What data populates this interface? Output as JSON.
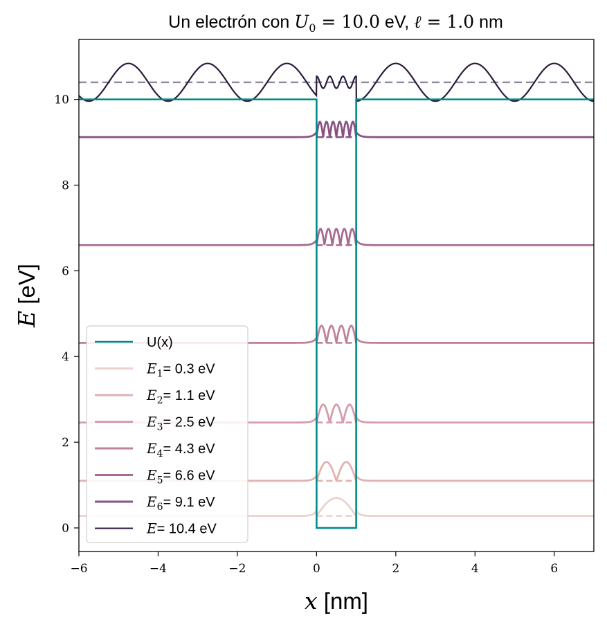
{
  "chart_data": {
    "type": "line",
    "title": {
      "prefix": "Un electrón con ",
      "u_var": "U",
      "u_sub": "0",
      "u_eq": " = 10.0",
      "u_unit": " eV, ",
      "l_var": "ℓ",
      "l_eq": " = 1.0",
      "l_unit": " nm"
    },
    "xlabel": {
      "var": "x",
      "unit": " [nm]"
    },
    "ylabel": {
      "var": "E",
      "unit": " [eV]"
    },
    "xlim": [
      -6,
      7
    ],
    "ylim": [
      -0.55,
      11.4
    ],
    "xticks": [
      -6,
      -4,
      -2,
      0,
      2,
      4,
      6
    ],
    "yticks": [
      0,
      2,
      4,
      6,
      8,
      10
    ],
    "well": {
      "U0": 10.0,
      "width": 1.0,
      "color": "#008b8b",
      "name": "U(x)"
    },
    "bound_states": [
      {
        "n": 1,
        "energy": 0.28,
        "label_sub": "1",
        "label_value": "= 0.3 eV",
        "color": "#ecd2cc",
        "amplitude": 0.42
      },
      {
        "n": 2,
        "energy": 1.1,
        "label_sub": "2",
        "label_value": "= 1.1 eV",
        "color": "#e2b2b1",
        "amplitude": 0.44
      },
      {
        "n": 3,
        "energy": 2.46,
        "label_sub": "3",
        "label_value": "= 2.5 eV",
        "color": "#d59dab",
        "amplitude": 0.42
      },
      {
        "n": 4,
        "energy": 4.32,
        "label_sub": "4",
        "label_value": "= 4.3 eV",
        "color": "#c0829b",
        "amplitude": 0.4
      },
      {
        "n": 5,
        "energy": 6.6,
        "label_sub": "5",
        "label_value": "= 6.6 eV",
        "color": "#a56b91",
        "amplitude": 0.38
      },
      {
        "n": 6,
        "energy": 9.12,
        "label_sub": "6",
        "label_value": "= 9.1 eV",
        "color": "#8a5283",
        "amplitude": 0.36
      }
    ],
    "free_state": {
      "energy": 10.4,
      "label_value": "= 10.4 eV",
      "color": "#2b1b3a",
      "baseline_color": "#8e8ba0",
      "amplitude_outside": 0.44,
      "amplitude_inside": 0.14,
      "wavelength_outside": 2.0,
      "oscillations_inside": 3
    },
    "legend": {
      "position": "lower-left"
    }
  }
}
